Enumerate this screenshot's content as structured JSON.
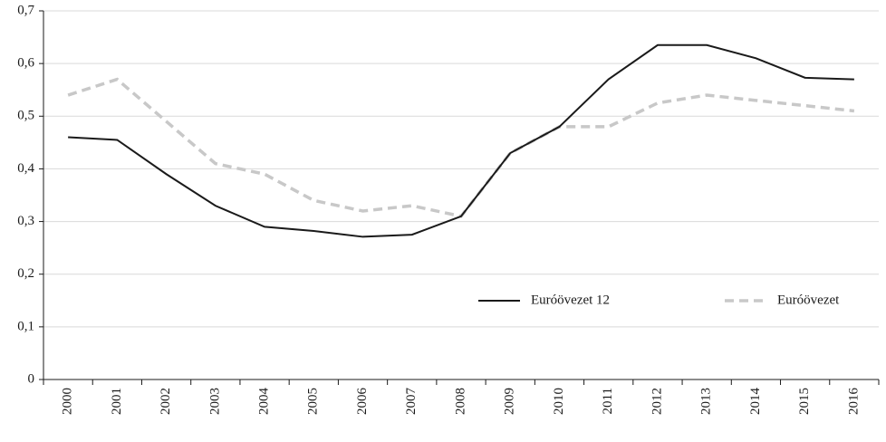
{
  "chart_data": {
    "type": "line",
    "categories": [
      "2000",
      "2001",
      "2002",
      "2003",
      "2004",
      "2005",
      "2006",
      "2007",
      "2008",
      "2009",
      "2010",
      "2011",
      "2012",
      "2013",
      "2014",
      "2015",
      "2016"
    ],
    "series": [
      {
        "name": "Euróövezet 12",
        "color": "#1a1a1a",
        "line_style": "solid",
        "values": [
          0.46,
          0.455,
          0.39,
          0.33,
          0.29,
          0.282,
          0.271,
          0.275,
          0.31,
          0.43,
          0.48,
          0.57,
          0.635,
          0.635,
          0.61,
          0.573,
          0.57
        ]
      },
      {
        "name": "Euróövezet",
        "color": "#c8c8c8",
        "line_style": "dashed",
        "values": [
          0.54,
          0.57,
          0.49,
          0.41,
          0.39,
          0.34,
          0.32,
          0.33,
          0.31,
          0.43,
          0.48,
          0.48,
          0.525,
          0.54,
          0.53,
          0.52,
          0.51
        ]
      }
    ],
    "ylim": [
      0,
      0.7
    ],
    "yticks": [
      0,
      {
        "value": 0.1,
        "label": "0,1"
      },
      {
        "value": 0.2,
        "label": "0,2"
      },
      {
        "value": 0.3,
        "label": "0,3"
      },
      {
        "value": 0.4,
        "label": "0,4"
      },
      {
        "value": 0.5,
        "label": "0,5"
      },
      {
        "value": 0.6,
        "label": "0,6"
      },
      {
        "value": 0.7,
        "label": "0,7"
      }
    ],
    "grid": true,
    "legend": "lower right"
  }
}
